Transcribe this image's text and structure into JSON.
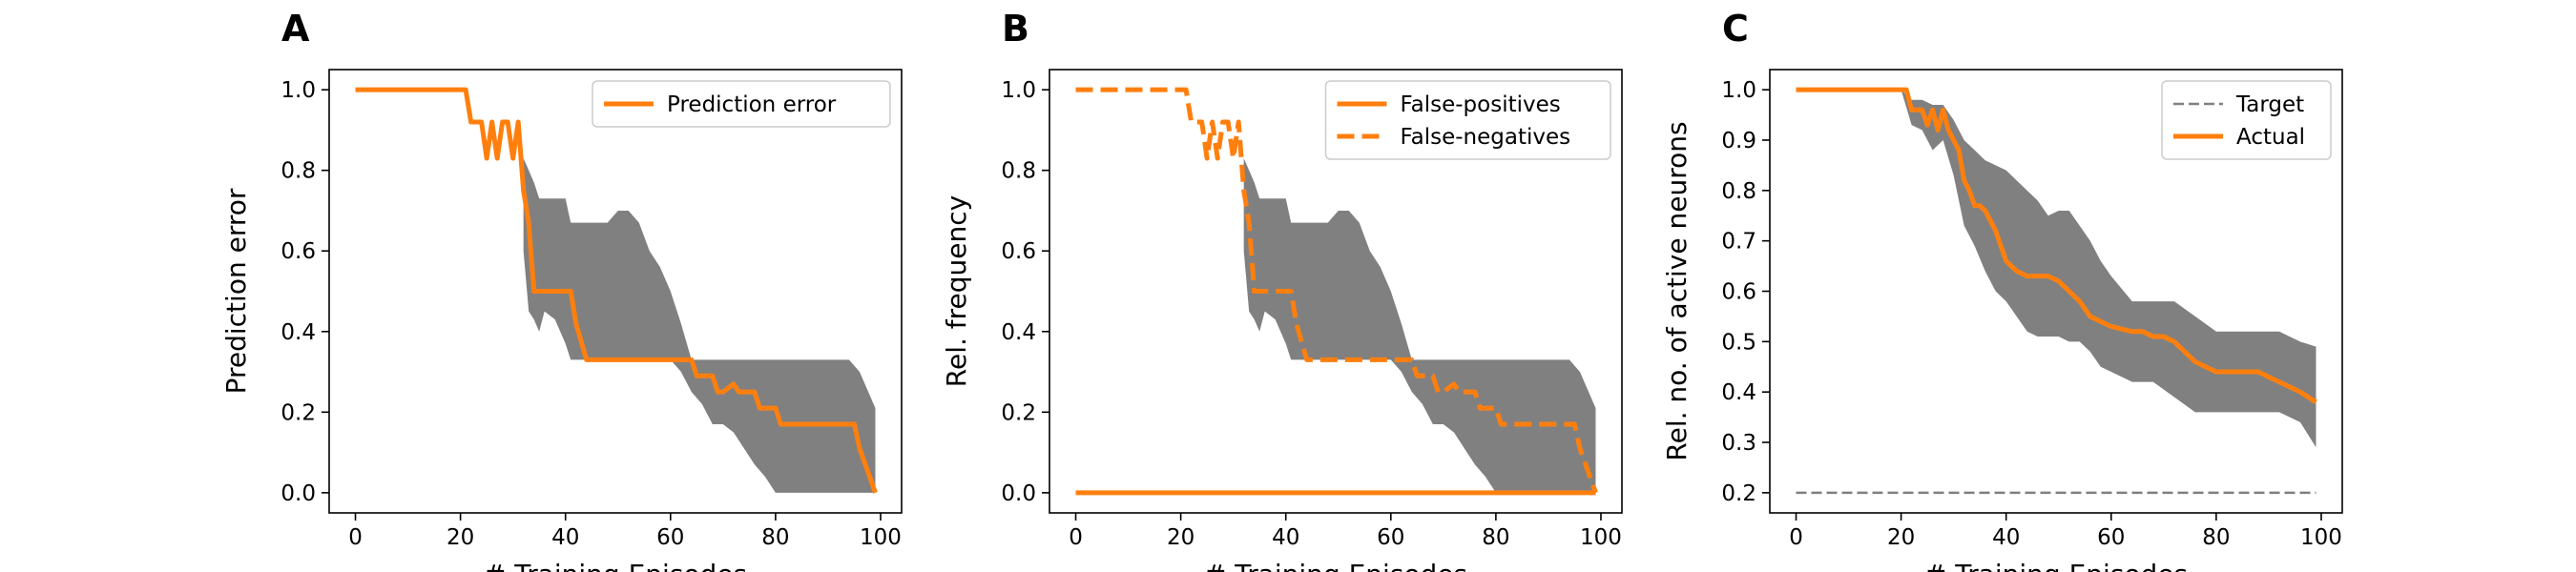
{
  "colors": {
    "orange": "#ff7f0e",
    "band": "#808080",
    "target": "#808080"
  },
  "chart_data": [
    {
      "type": "line",
      "panel_label": "A",
      "xlabel": "# Training Episodes",
      "ylabel": "Prediction error",
      "xlim": [
        -5,
        104
      ],
      "ylim": [
        -0.05,
        1.05
      ],
      "xticks": [
        0,
        20,
        40,
        60,
        80,
        100
      ],
      "yticks": [
        0.0,
        0.2,
        0.4,
        0.6,
        0.8,
        1.0
      ],
      "ytick_labels": [
        "0.0",
        "0.2",
        "0.4",
        "0.6",
        "0.8",
        "1.0"
      ],
      "legend_loc": "upper-right",
      "band": {
        "x": [
          32,
          33,
          34,
          35,
          36,
          38,
          40,
          41,
          42,
          44,
          45,
          48,
          50,
          52,
          54,
          56,
          58,
          60,
          62,
          64,
          66,
          68,
          70,
          72,
          74,
          76,
          78,
          80,
          82,
          84,
          86,
          88,
          90,
          92,
          94,
          96,
          98,
          99
        ],
        "upper": [
          0.83,
          0.8,
          0.77,
          0.73,
          0.73,
          0.73,
          0.73,
          0.67,
          0.67,
          0.67,
          0.67,
          0.67,
          0.7,
          0.7,
          0.67,
          0.6,
          0.56,
          0.5,
          0.42,
          0.33,
          0.33,
          0.33,
          0.33,
          0.33,
          0.33,
          0.33,
          0.33,
          0.33,
          0.33,
          0.33,
          0.33,
          0.33,
          0.33,
          0.33,
          0.33,
          0.3,
          0.24,
          0.21
        ],
        "lower": [
          0.6,
          0.45,
          0.43,
          0.4,
          0.45,
          0.43,
          0.37,
          0.33,
          0.33,
          0.33,
          0.33,
          0.33,
          0.33,
          0.33,
          0.33,
          0.33,
          0.33,
          0.33,
          0.3,
          0.25,
          0.22,
          0.17,
          0.17,
          0.15,
          0.11,
          0.07,
          0.04,
          0.0,
          0.0,
          0.0,
          0.0,
          0.0,
          0.0,
          0.0,
          0.0,
          0.0,
          0.0,
          0.0
        ]
      },
      "series": [
        {
          "name": "Prediction error",
          "style": "solid",
          "x": [
            0,
            21,
            22,
            24,
            25,
            26,
            27,
            28,
            29,
            30,
            31,
            32,
            33,
            34,
            35,
            41,
            42,
            44,
            45,
            64,
            65,
            66,
            68,
            69,
            70,
            72,
            73,
            76,
            77,
            80,
            81,
            95,
            96,
            99
          ],
          "y": [
            1.0,
            1.0,
            0.92,
            0.92,
            0.83,
            0.92,
            0.83,
            0.92,
            0.92,
            0.83,
            0.92,
            0.75,
            0.67,
            0.5,
            0.5,
            0.5,
            0.42,
            0.33,
            0.33,
            0.33,
            0.29,
            0.29,
            0.29,
            0.25,
            0.25,
            0.27,
            0.25,
            0.25,
            0.21,
            0.21,
            0.17,
            0.17,
            0.11,
            0.0
          ]
        }
      ]
    },
    {
      "type": "line",
      "panel_label": "B",
      "xlabel": "# Training Episodes",
      "ylabel": "Rel. frequency",
      "xlim": [
        -5,
        104
      ],
      "ylim": [
        -0.05,
        1.05
      ],
      "xticks": [
        0,
        20,
        40,
        60,
        80,
        100
      ],
      "yticks": [
        0.0,
        0.2,
        0.4,
        0.6,
        0.8,
        1.0
      ],
      "ytick_labels": [
        "0.0",
        "0.2",
        "0.4",
        "0.6",
        "0.8",
        "1.0"
      ],
      "legend_loc": "upper-right",
      "band": {
        "x": [
          32,
          33,
          34,
          35,
          36,
          38,
          40,
          41,
          42,
          44,
          45,
          48,
          50,
          52,
          54,
          56,
          58,
          60,
          62,
          64,
          66,
          68,
          70,
          72,
          74,
          76,
          78,
          80,
          82,
          84,
          86,
          88,
          90,
          92,
          94,
          96,
          98,
          99
        ],
        "upper": [
          0.83,
          0.8,
          0.77,
          0.73,
          0.73,
          0.73,
          0.73,
          0.67,
          0.67,
          0.67,
          0.67,
          0.67,
          0.7,
          0.7,
          0.67,
          0.6,
          0.56,
          0.5,
          0.42,
          0.33,
          0.33,
          0.33,
          0.33,
          0.33,
          0.33,
          0.33,
          0.33,
          0.33,
          0.33,
          0.33,
          0.33,
          0.33,
          0.33,
          0.33,
          0.33,
          0.3,
          0.24,
          0.21
        ],
        "lower": [
          0.6,
          0.45,
          0.43,
          0.4,
          0.45,
          0.43,
          0.37,
          0.33,
          0.33,
          0.33,
          0.33,
          0.33,
          0.33,
          0.33,
          0.33,
          0.33,
          0.33,
          0.33,
          0.3,
          0.25,
          0.22,
          0.17,
          0.17,
          0.15,
          0.11,
          0.07,
          0.04,
          0.0,
          0.0,
          0.0,
          0.0,
          0.0,
          0.0,
          0.0,
          0.0,
          0.0,
          0.0,
          0.0
        ]
      },
      "series": [
        {
          "name": "False-positives",
          "style": "solid",
          "x": [
            0,
            99
          ],
          "y": [
            0.0,
            0.0
          ]
        },
        {
          "name": "False-negatives",
          "style": "dashed",
          "x": [
            0,
            21,
            22,
            24,
            25,
            26,
            27,
            28,
            29,
            30,
            31,
            32,
            33,
            34,
            35,
            41,
            42,
            44,
            45,
            64,
            65,
            66,
            68,
            69,
            70,
            72,
            73,
            76,
            77,
            80,
            81,
            95,
            96,
            99
          ],
          "y": [
            1.0,
            1.0,
            0.92,
            0.92,
            0.83,
            0.92,
            0.83,
            0.92,
            0.92,
            0.83,
            0.92,
            0.75,
            0.67,
            0.5,
            0.5,
            0.5,
            0.42,
            0.33,
            0.33,
            0.33,
            0.29,
            0.29,
            0.29,
            0.25,
            0.25,
            0.27,
            0.25,
            0.25,
            0.21,
            0.21,
            0.17,
            0.17,
            0.11,
            0.0
          ]
        }
      ]
    },
    {
      "type": "line",
      "panel_label": "C",
      "xlabel": "# Training Episodes",
      "ylabel": "Rel. no. of active neurons",
      "xlim": [
        -5,
        104
      ],
      "ylim": [
        0.16,
        1.04
      ],
      "xticks": [
        0,
        20,
        40,
        60,
        80,
        100
      ],
      "yticks": [
        0.2,
        0.3,
        0.4,
        0.5,
        0.6,
        0.7,
        0.8,
        0.9,
        1.0
      ],
      "ytick_labels": [
        "0.2",
        "0.3",
        "0.4",
        "0.5",
        "0.6",
        "0.7",
        "0.8",
        "0.9",
        "1.0"
      ],
      "legend_loc": "upper-right",
      "band": {
        "x": [
          20,
          22,
          24,
          26,
          28,
          30,
          32,
          34,
          36,
          38,
          40,
          42,
          44,
          46,
          48,
          50,
          52,
          54,
          56,
          58,
          60,
          64,
          68,
          72,
          76,
          80,
          84,
          88,
          92,
          96,
          99
        ],
        "upper": [
          1.0,
          0.98,
          0.98,
          0.97,
          0.97,
          0.94,
          0.9,
          0.88,
          0.86,
          0.85,
          0.84,
          0.82,
          0.8,
          0.78,
          0.75,
          0.76,
          0.76,
          0.73,
          0.7,
          0.66,
          0.63,
          0.58,
          0.58,
          0.58,
          0.55,
          0.52,
          0.52,
          0.52,
          0.52,
          0.5,
          0.49
        ],
        "lower": [
          1.0,
          0.93,
          0.92,
          0.88,
          0.9,
          0.83,
          0.73,
          0.69,
          0.64,
          0.6,
          0.58,
          0.55,
          0.52,
          0.51,
          0.51,
          0.51,
          0.5,
          0.5,
          0.48,
          0.45,
          0.44,
          0.42,
          0.42,
          0.39,
          0.36,
          0.36,
          0.36,
          0.36,
          0.36,
          0.34,
          0.29
        ]
      },
      "series": [
        {
          "name": "Target",
          "style": "dashed-thin",
          "color": "#808080",
          "x": [
            0,
            99
          ],
          "y": [
            0.2,
            0.2
          ]
        },
        {
          "name": "Actual",
          "style": "solid",
          "x": [
            0,
            21,
            22,
            24,
            25,
            26,
            27,
            28,
            29,
            30,
            31,
            32,
            33,
            34,
            35,
            36,
            38,
            40,
            42,
            44,
            46,
            48,
            50,
            52,
            54,
            56,
            58,
            60,
            64,
            66,
            68,
            70,
            72,
            74,
            76,
            78,
            80,
            84,
            88,
            90,
            94,
            96,
            99
          ],
          "y": [
            1.0,
            1.0,
            0.96,
            0.96,
            0.93,
            0.96,
            0.92,
            0.96,
            0.92,
            0.9,
            0.88,
            0.82,
            0.8,
            0.77,
            0.77,
            0.76,
            0.72,
            0.66,
            0.64,
            0.63,
            0.63,
            0.63,
            0.62,
            0.6,
            0.58,
            0.55,
            0.54,
            0.53,
            0.52,
            0.52,
            0.51,
            0.51,
            0.5,
            0.48,
            0.46,
            0.45,
            0.44,
            0.44,
            0.44,
            0.43,
            0.41,
            0.4,
            0.38
          ]
        }
      ]
    }
  ]
}
